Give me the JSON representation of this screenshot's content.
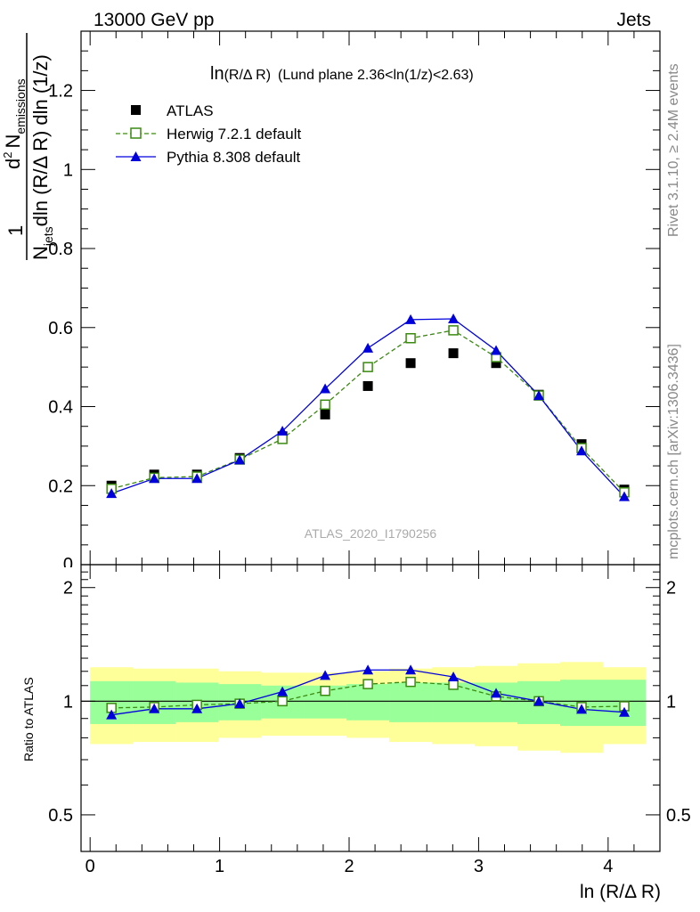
{
  "header": {
    "left": "13000 GeV pp",
    "right": "Jets"
  },
  "side_labels": {
    "rivet": "Rivet 3.1.10, ≥ 2.4M events",
    "mcplots": "mcplots.cern.ch [arXiv:1306.3436]"
  },
  "watermark": "ATLAS_2020_I1790256",
  "title_main": "ln",
  "title_paren": "(R/Δ R)",
  "title_rest": "(Lund plane 2.36<ln(1/z)<2.63)",
  "ylabel_parts": {
    "one": "1",
    "N": "N",
    "jets": "jets",
    "den": "dln (R/Δ R) dln (1/z)",
    "d2": "d",
    "sup2": "2",
    "Nem": "N",
    "emissions": "emissions"
  },
  "xlabel": "ln (R/Δ R)",
  "ratio_ylabel": "Ratio to ATLAS",
  "colors": {
    "atlas": "#000000",
    "herwig": "#3a8a10",
    "pythia": "#0000dd",
    "band_outer": "#ffff99",
    "band_inner": "#99ff99"
  },
  "chart_data": {
    "type": "scatter",
    "x": [
      0.165,
      0.495,
      0.825,
      1.155,
      1.485,
      1.815,
      2.145,
      2.475,
      2.805,
      3.135,
      3.465,
      3.795,
      4.125
    ],
    "xlim": [
      -0.07,
      4.4
    ],
    "main": {
      "ylim": [
        0,
        1.35
      ],
      "yticks": [
        0.2,
        0.4,
        0.6,
        0.8,
        1,
        1.2
      ],
      "ytick_labels": [
        "0.2",
        "0.4",
        "0.6",
        "0.8",
        "1",
        "1.2"
      ],
      "extra_tick_label": "0"
    },
    "ratio": {
      "ylim": [
        0.4,
        2.3
      ],
      "yticks": [
        0.5,
        1,
        2
      ],
      "ytick_labels": [
        "0.5",
        "1",
        "2"
      ],
      "xticks": [
        0,
        1,
        2,
        3,
        4
      ],
      "xtick_labels": [
        "0",
        "1",
        "2",
        "3",
        "4"
      ]
    },
    "series": [
      {
        "name": "ATLAS",
        "values": [
          0.2,
          0.228,
          0.228,
          0.27,
          0.325,
          0.38,
          0.452,
          0.51,
          0.535,
          0.51,
          0.43,
          0.305,
          0.19
        ],
        "ratio": [
          1,
          1,
          1,
          1,
          1,
          1,
          1,
          1,
          1,
          1,
          1,
          1,
          1
        ],
        "band_inner": [
          0.13,
          0.13,
          0.12,
          0.11,
          0.1,
          0.1,
          0.11,
          0.12,
          0.12,
          0.12,
          0.13,
          0.14,
          0.14
        ],
        "band_outer": [
          0.23,
          0.22,
          0.22,
          0.2,
          0.19,
          0.19,
          0.2,
          0.22,
          0.23,
          0.24,
          0.26,
          0.27,
          0.23
        ]
      },
      {
        "name": "Herwig 7.2.1 default",
        "values": [
          0.192,
          0.22,
          0.223,
          0.266,
          0.318,
          0.405,
          0.5,
          0.573,
          0.593,
          0.525,
          0.428,
          0.295,
          0.183
        ],
        "ratio": [
          0.96,
          0.965,
          0.978,
          0.985,
          1.0,
          1.065,
          1.11,
          1.125,
          1.105,
          1.03,
          1.0,
          0.965,
          0.97
        ]
      },
      {
        "name": "Pythia 8.308 default",
        "values": [
          0.18,
          0.218,
          0.218,
          0.265,
          0.338,
          0.445,
          0.548,
          0.62,
          0.622,
          0.542,
          0.428,
          0.288,
          0.172
        ],
        "ratio": [
          0.92,
          0.955,
          0.955,
          0.985,
          1.06,
          1.17,
          1.21,
          1.21,
          1.16,
          1.05,
          1.0,
          0.952,
          0.935
        ]
      }
    ]
  }
}
